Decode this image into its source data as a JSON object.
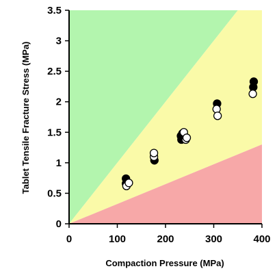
{
  "chart_data": {
    "type": "scatter",
    "xlabel": "Compaction Pressure (MPa)",
    "ylabel": "Tablet Tensile Fracture Stress (MPa)",
    "xlim": [
      0,
      400
    ],
    "ylim": [
      0,
      3.5
    ],
    "x_ticks": [
      "0",
      "100",
      "200",
      "300",
      "400"
    ],
    "y_ticks": [
      "0",
      "0.5",
      "1",
      "1.5",
      "2",
      "2.5",
      "3",
      "3.5"
    ],
    "grid": false,
    "regions": [
      {
        "name": "upper",
        "color": "#b3f5ae",
        "boundary_slope": 0.01
      },
      {
        "name": "middle",
        "color": "#fafaa8"
      },
      {
        "name": "lower",
        "color": "#f7a8a8",
        "boundary_slope": 0.00325
      }
    ],
    "series": [
      {
        "marker": "filled",
        "color": "#000000",
        "points": [
          [
            118,
            0.74
          ],
          [
            118,
            0.66
          ],
          [
            177,
            1.04
          ],
          [
            232,
            1.44
          ],
          [
            233,
            1.38
          ],
          [
            235,
            1.48
          ],
          [
            307,
            1.97
          ],
          [
            383,
            2.33
          ],
          [
            382,
            2.24
          ]
        ]
      },
      {
        "marker": "open",
        "color": "#000000",
        "points": [
          [
            119,
            0.62
          ],
          [
            124,
            0.67
          ],
          [
            176,
            1.1
          ],
          [
            176,
            1.16
          ],
          [
            238,
            1.5
          ],
          [
            242,
            1.38
          ],
          [
            244,
            1.41
          ],
          [
            306,
            1.88
          ],
          [
            308,
            1.77
          ],
          [
            381,
            2.13
          ]
        ]
      }
    ]
  }
}
